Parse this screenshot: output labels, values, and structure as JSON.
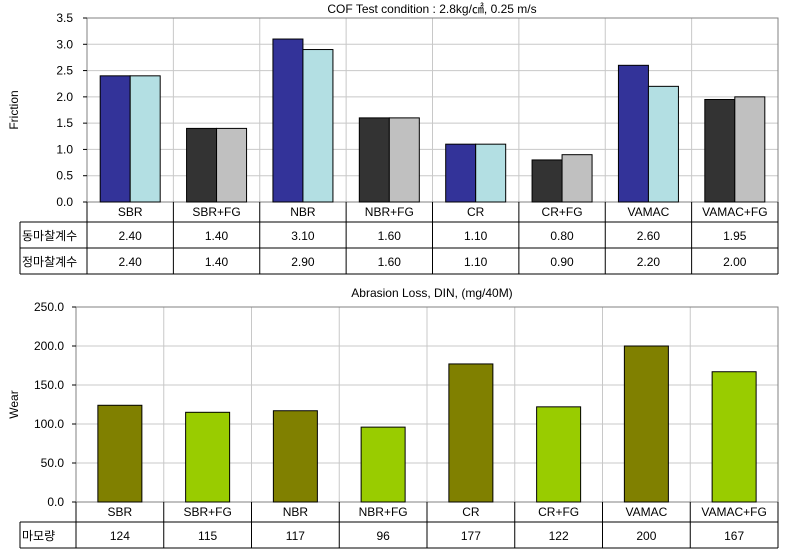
{
  "chart_data": [
    {
      "type": "bar",
      "title": "COF Test condition : 2.8kg/㎠, 0.25 m/s",
      "ylabel": "Friction",
      "xlabel": "",
      "ylim": [
        0,
        3.5
      ],
      "yticks": [
        "0.0",
        "0.5",
        "1.0",
        "1.5",
        "2.0",
        "2.5",
        "3.0",
        "3.5"
      ],
      "grid": true,
      "categories": [
        "SBR",
        "SBR+FG",
        "NBR",
        "NBR+FG",
        "CR",
        "CR+FG",
        "VAMAC",
        "VAMAC+FG"
      ],
      "series": [
        {
          "name": "동마찰계수",
          "values": [
            2.4,
            1.4,
            3.1,
            1.6,
            1.1,
            0.8,
            2.6,
            1.95
          ],
          "labels": [
            "2.40",
            "1.40",
            "3.10",
            "1.60",
            "1.10",
            "0.80",
            "2.60",
            "1.95"
          ]
        },
        {
          "name": "정마찰계수",
          "values": [
            2.4,
            1.4,
            2.9,
            1.6,
            1.1,
            0.9,
            2.2,
            2.0
          ],
          "labels": [
            "2.40",
            "1.40",
            "2.90",
            "1.60",
            "1.10",
            "0.90",
            "2.20",
            "2.00"
          ]
        }
      ],
      "colors": {
        "base_kinetic": "#333399",
        "base_static": "#b3dfe3",
        "fg_kinetic": "#333333",
        "fg_static": "#c0c0c0"
      }
    },
    {
      "type": "bar",
      "title": "Abrasion Loss, DIN, (mg/40M)",
      "ylabel": "Wear",
      "xlabel": "",
      "ylim": [
        0,
        250
      ],
      "yticks": [
        "0.0",
        "50.0",
        "100.0",
        "150.0",
        "200.0",
        "250.0"
      ],
      "grid": true,
      "categories": [
        "SBR",
        "SBR+FG",
        "NBR",
        "NBR+FG",
        "CR",
        "CR+FG",
        "VAMAC",
        "VAMAC+FG"
      ],
      "series": [
        {
          "name": "마모량",
          "values": [
            124,
            115,
            117,
            96,
            177,
            122,
            200,
            167
          ],
          "labels": [
            "124",
            "115",
            "117",
            "96",
            "177",
            "122",
            "200",
            "167"
          ]
        }
      ],
      "colors": {
        "base": "#808000",
        "fg": "#99cc00"
      }
    }
  ]
}
